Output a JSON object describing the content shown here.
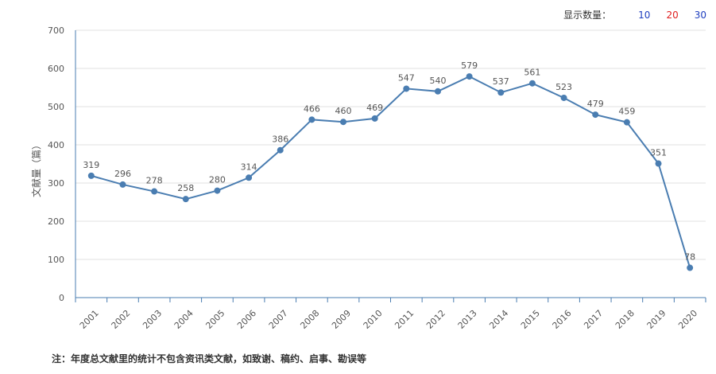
{
  "controls": {
    "label": "显示数量：",
    "options": [
      {
        "label": "10",
        "color": "#1f3fbf"
      },
      {
        "label": "20",
        "color": "#e02020"
      },
      {
        "label": "30",
        "color": "#1f3fbf"
      }
    ]
  },
  "note": "注：年度总文献里的统计不包含资讯类文献，如致谢、稿约、启事、勘误等",
  "colors": {
    "line": "#4a7db1",
    "axis": "#4a7db1",
    "grid": "#e0e0e0",
    "text": "#555555"
  },
  "chart_data": {
    "type": "line",
    "title": "",
    "xlabel": "",
    "ylabel": "文献量（篇）",
    "ylim": [
      0,
      700
    ],
    "yticks": [
      0,
      100,
      200,
      300,
      400,
      500,
      600,
      700
    ],
    "grid": true,
    "categories": [
      "2001",
      "2002",
      "2003",
      "2004",
      "2005",
      "2006",
      "2007",
      "2008",
      "2009",
      "2010",
      "2011",
      "2012",
      "2013",
      "2014",
      "2015",
      "2016",
      "2017",
      "2018",
      "2019",
      "2020"
    ],
    "series": [
      {
        "values": [
          319,
          296,
          278,
          258,
          280,
          314,
          386,
          466,
          460,
          469,
          547,
          540,
          579,
          537,
          561,
          523,
          479,
          459,
          351,
          78
        ]
      }
    ]
  }
}
